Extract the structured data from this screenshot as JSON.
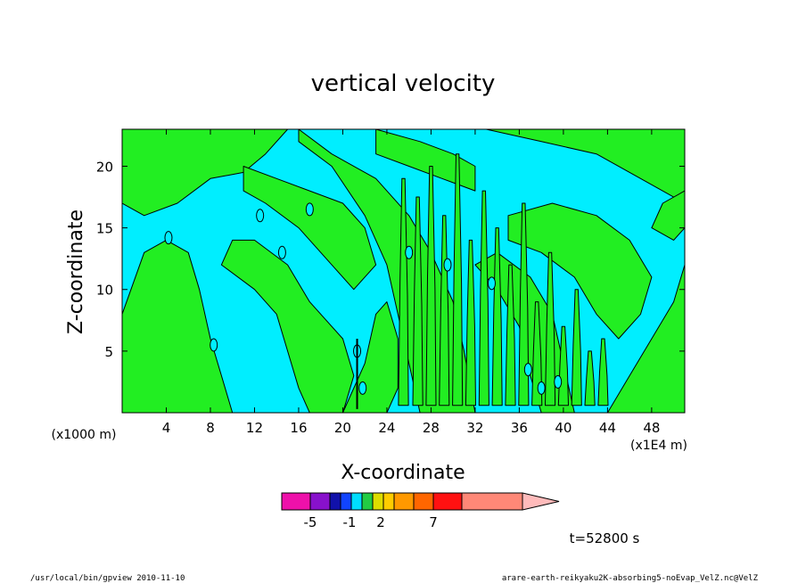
{
  "chart_data": {
    "type": "heatmap",
    "title": "vertical velocity",
    "xlabel": "X-coordinate",
    "ylabel": "Z-coordinate",
    "x_unit": "(x1E4 m)",
    "y_unit": "(x1000 m)",
    "xlim": [
      0,
      51
    ],
    "ylim": [
      0,
      23
    ],
    "x_ticks": [
      4,
      8,
      12,
      16,
      20,
      24,
      28,
      32,
      36,
      40,
      44,
      48
    ],
    "y_ticks": [
      5,
      10,
      15,
      20
    ],
    "grid": false,
    "colors": {
      "positive_fill": "#22ee22",
      "negative_fill": "#00eeff",
      "contour": "#000000"
    },
    "colorbar": {
      "colors": [
        "#ee11aa",
        "#8811cc",
        "#1111aa",
        "#1144ff",
        "#00ddff",
        "#22cc44",
        "#dddd00",
        "#ffcc00",
        "#ff9900",
        "#ff6600",
        "#ff1111",
        "#ff8877",
        "#ffbbbb"
      ],
      "tick_labels": [
        "-5",
        "-1",
        "2",
        "7"
      ],
      "tick_values": [
        -5,
        -1,
        2,
        7
      ]
    },
    "time_label": "t=52800 s"
  },
  "footer": {
    "left": "/usr/local/bin/gpview   2010-11-10",
    "right": "arare-earth-reikyaku2K-absorbing5-noEvap_VelZ.nc@VelZ"
  }
}
